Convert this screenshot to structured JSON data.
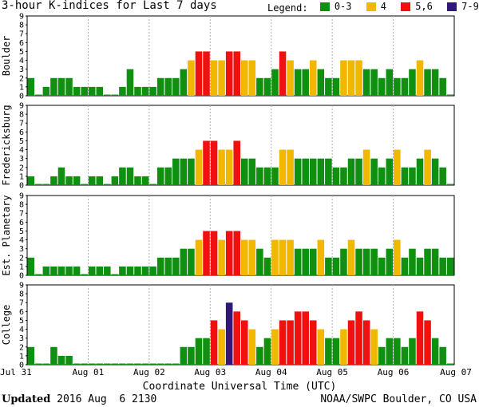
{
  "title": "3-hour K-indices for Last 7 days",
  "legend": {
    "label": "Legend:",
    "items": [
      {
        "label": "0-3",
        "color": "#109010"
      },
      {
        "label": "4",
        "color": "#f0b800"
      },
      {
        "label": "5,6",
        "color": "#f01010"
      },
      {
        "label": "7-9",
        "color": "#30187a"
      }
    ]
  },
  "x_title": "Coordinate Universal Time (UTC)",
  "footer": {
    "updated_label": "Updated",
    "updated_value": " 2016 Aug  6 2130",
    "credit": "NOAA/SWPC Boulder, CO USA"
  },
  "chart_data": {
    "type": "bar",
    "ylim": [
      0,
      9
    ],
    "y_ticks": [
      0,
      1,
      2,
      3,
      4,
      5,
      6,
      7,
      8,
      9
    ],
    "x_tick_labels": [
      "Jul 31",
      "Aug 01",
      "Aug 02",
      "Aug 03",
      "Aug 04",
      "Aug 05",
      "Aug 06",
      "Aug 07"
    ],
    "bars_per_day": 8,
    "panels": [
      {
        "name": "Boulder",
        "values": [
          2,
          0,
          1,
          2,
          2,
          2,
          1,
          1,
          1,
          1,
          0,
          0,
          1,
          3,
          1,
          1,
          1,
          2,
          2,
          2,
          3,
          4,
          5,
          5,
          4,
          4,
          5,
          5,
          4,
          4,
          2,
          2,
          3,
          5,
          4,
          3,
          3,
          4,
          3,
          2,
          2,
          4,
          4,
          4,
          3,
          3,
          2,
          3,
          2,
          2,
          3,
          4,
          3,
          3,
          2,
          0
        ]
      },
      {
        "name": "Fredericksburg",
        "values": [
          1,
          0,
          0,
          1,
          2,
          1,
          1,
          0,
          1,
          1,
          0,
          1,
          2,
          2,
          1,
          1,
          0,
          2,
          2,
          3,
          3,
          3,
          4,
          5,
          5,
          4,
          4,
          5,
          3,
          3,
          2,
          2,
          2,
          4,
          4,
          3,
          3,
          3,
          3,
          3,
          2,
          2,
          3,
          3,
          4,
          3,
          2,
          3,
          4,
          2,
          2,
          3,
          4,
          3,
          2,
          0
        ]
      },
      {
        "name": "Est. Planetary",
        "values": [
          2,
          0,
          1,
          1,
          1,
          1,
          1,
          0,
          1,
          1,
          1,
          0,
          1,
          1,
          1,
          1,
          1,
          2,
          2,
          2,
          3,
          3,
          4,
          5,
          5,
          4,
          5,
          5,
          4,
          4,
          3,
          2,
          4,
          4,
          4,
          3,
          3,
          3,
          4,
          2,
          2,
          3,
          4,
          3,
          3,
          3,
          2,
          3,
          4,
          2,
          3,
          2,
          3,
          3,
          2,
          2
        ]
      },
      {
        "name": "College",
        "values": [
          2,
          0,
          0,
          2,
          1,
          1,
          0,
          0,
          0,
          0,
          0,
          0,
          0,
          0,
          0,
          0,
          0,
          0,
          0,
          0,
          2,
          2,
          3,
          3,
          5,
          4,
          7,
          6,
          5,
          4,
          2,
          3,
          4,
          5,
          5,
          6,
          6,
          5,
          4,
          3,
          3,
          4,
          5,
          6,
          5,
          4,
          2,
          3,
          3,
          2,
          3,
          6,
          5,
          3,
          2,
          0
        ]
      }
    ]
  }
}
